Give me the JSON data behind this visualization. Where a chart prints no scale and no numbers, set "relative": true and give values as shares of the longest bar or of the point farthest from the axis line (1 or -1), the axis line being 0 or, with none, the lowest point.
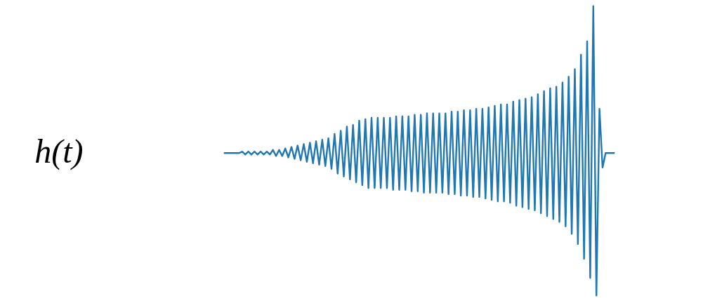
{
  "chart_data": {
    "type": "line",
    "relative": true,
    "ylabel": "h(t)",
    "categories": [
      null,
      null,
      null,
      null,
      null,
      null,
      null,
      null,
      null,
      null,
      null,
      null,
      null,
      null,
      null,
      null,
      null,
      null,
      null,
      null,
      null,
      null,
      null,
      null,
      null,
      null,
      null,
      null,
      null,
      null,
      null,
      null,
      null,
      null,
      null,
      null,
      null,
      null,
      null,
      null,
      null,
      null,
      null,
      null,
      null,
      null,
      null,
      null,
      null,
      null,
      null,
      null,
      null,
      null,
      null,
      null,
      null,
      null,
      null,
      null,
      null,
      null,
      null,
      null,
      null,
      null,
      null,
      null,
      null,
      null,
      null,
      null,
      null,
      null,
      null,
      null,
      null,
      null,
      null,
      null,
      null,
      null,
      null,
      null,
      null,
      null,
      null,
      null,
      null,
      null,
      null,
      null,
      null,
      null,
      null,
      null,
      null,
      null,
      null,
      null,
      null,
      null,
      null,
      null,
      null,
      null,
      null,
      null,
      null,
      null,
      null,
      null,
      null,
      null,
      null,
      null,
      null,
      null,
      null,
      null,
      null,
      null,
      null,
      null,
      null,
      null,
      null,
      null
    ],
    "series": [
      {
        "color": "#1f77b4",
        "values": [
          0.492,
          0.492,
          0.492,
          0.492,
          0.492,
          0.492,
          0.497,
          0.487,
          0.497,
          0.487,
          0.497,
          0.487,
          0.497,
          0.487,
          0.497,
          0.487,
          0.503,
          0.482,
          0.503,
          0.482,
          0.508,
          0.477,
          0.513,
          0.472,
          0.518,
          0.467,
          0.523,
          0.462,
          0.528,
          0.457,
          0.533,
          0.452,
          0.538,
          0.447,
          0.543,
          0.437,
          0.558,
          0.421,
          0.569,
          0.411,
          0.584,
          0.401,
          0.589,
          0.391,
          0.604,
          0.381,
          0.609,
          0.371,
          0.614,
          0.371,
          0.614,
          0.371,
          0.614,
          0.371,
          0.614,
          0.365,
          0.619,
          0.365,
          0.619,
          0.365,
          0.619,
          0.36,
          0.624,
          0.36,
          0.624,
          0.355,
          0.629,
          0.355,
          0.629,
          0.355,
          0.629,
          0.355,
          0.629,
          0.35,
          0.635,
          0.35,
          0.635,
          0.345,
          0.64,
          0.345,
          0.64,
          0.34,
          0.645,
          0.34,
          0.645,
          0.335,
          0.65,
          0.33,
          0.655,
          0.325,
          0.66,
          0.325,
          0.66,
          0.32,
          0.67,
          0.31,
          0.675,
          0.305,
          0.68,
          0.299,
          0.685,
          0.294,
          0.695,
          0.284,
          0.706,
          0.274,
          0.716,
          0.264,
          0.721,
          0.254,
          0.736,
          0.239,
          0.756,
          0.213,
          0.782,
          0.178,
          0.832,
          0.127,
          0.878,
          0.061,
          1,
          0,
          0.645,
          0.442,
          0.492,
          0.492,
          0.492,
          0.492
        ]
      }
    ]
  }
}
